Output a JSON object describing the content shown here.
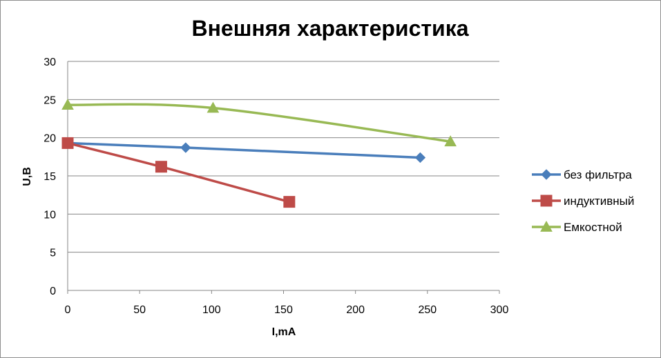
{
  "chart_data": {
    "type": "line",
    "title": "Внешняя характеристика",
    "xlabel": "I,mA",
    "ylabel": "U,B",
    "xlim": [
      0,
      300
    ],
    "ylim": [
      0,
      30
    ],
    "xticks": [
      0,
      50,
      100,
      150,
      200,
      250,
      300
    ],
    "yticks": [
      0,
      5,
      10,
      15,
      20,
      25,
      30
    ],
    "grid": "horizontal",
    "legend_position": "right",
    "series": [
      {
        "name": "без фильтра",
        "color": "#4a7ebb",
        "marker": "diamond",
        "points": [
          [
            0,
            19.3
          ],
          [
            82,
            18.7
          ],
          [
            245,
            17.4
          ]
        ]
      },
      {
        "name": "индуктивный",
        "color": "#be4b48",
        "marker": "square",
        "points": [
          [
            0,
            19.3
          ],
          [
            65,
            16.2
          ],
          [
            154,
            11.6
          ]
        ]
      },
      {
        "name": "Емкостной",
        "color": "#98b954",
        "marker": "triangle",
        "points": [
          [
            0,
            24.3
          ],
          [
            101,
            23.9
          ],
          [
            266,
            19.5
          ]
        ]
      }
    ]
  }
}
